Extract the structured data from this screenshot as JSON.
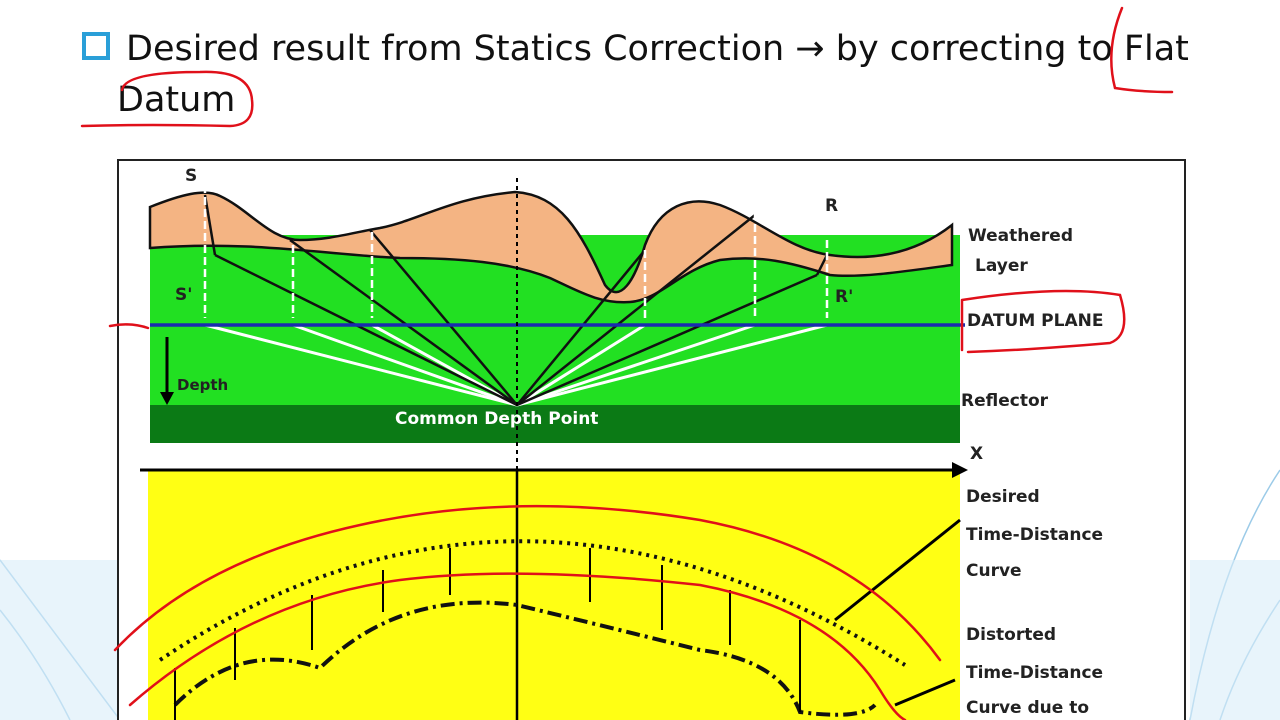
{
  "header": {
    "title": "Desired result from Statics Correction → by correcting to Flat Datum"
  },
  "diagram": {
    "source_label": "S",
    "receiver_label": "R",
    "source_datum_label": "S'",
    "receiver_datum_label": "R'",
    "weathered_layer_label": [
      "Weathered",
      "Layer"
    ],
    "datum_plane_label": "DATUM PLANE",
    "depth_label": "Depth",
    "reflector_label": "Reflector",
    "cdp_label": "Common Depth Point",
    "x_axis_label": "X",
    "desired_curve_label": [
      "Desired",
      "Time-Distance",
      "Curve"
    ],
    "distorted_curve_label": [
      "Distorted",
      "Time-Distance",
      "Curve due to"
    ]
  }
}
